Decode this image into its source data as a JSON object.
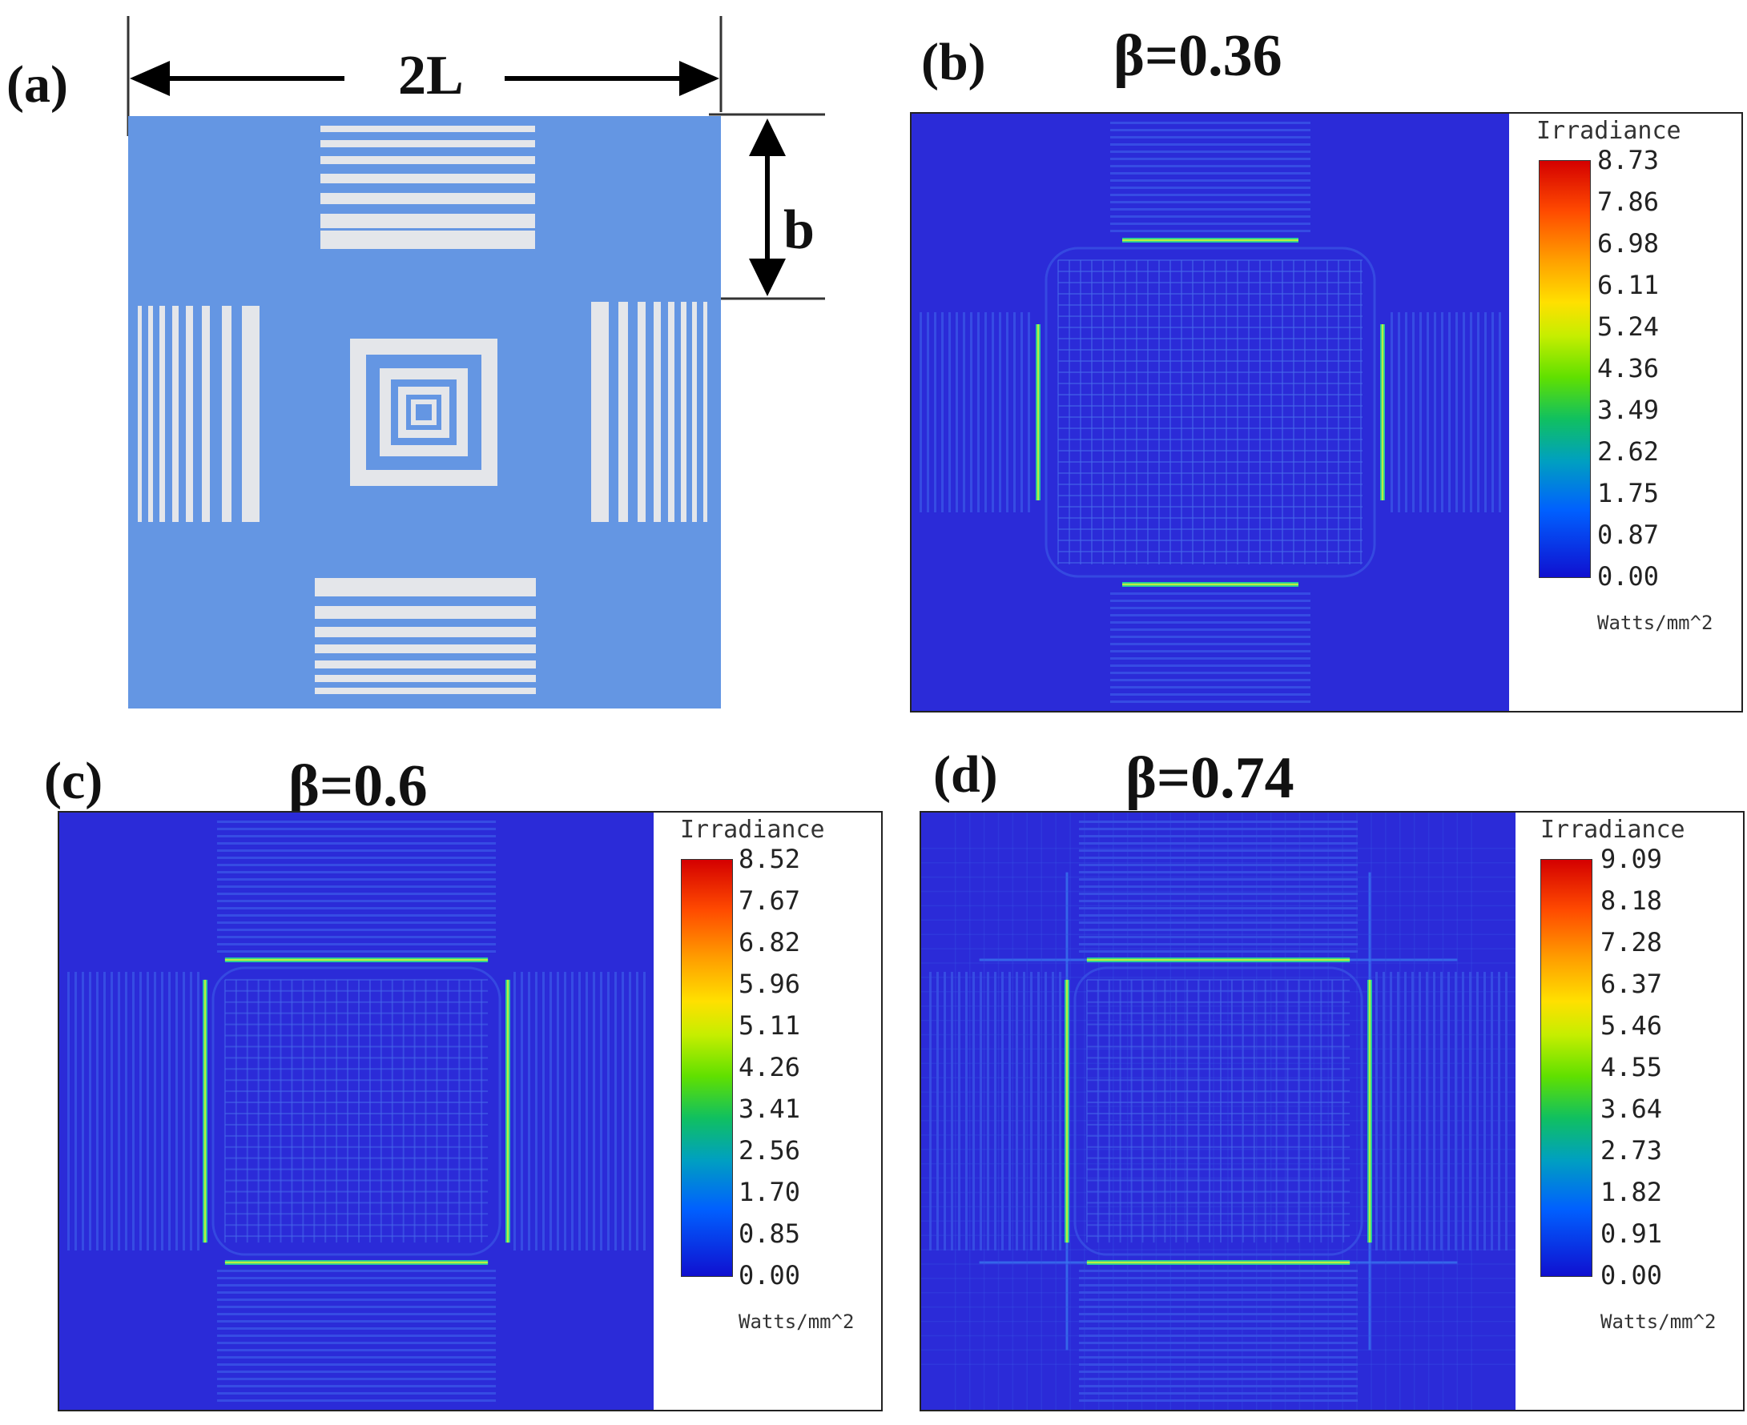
{
  "panel_a": {
    "label": "(a)",
    "width_label": "2L",
    "height_label": "b",
    "colors": {
      "mask": "#6496e3",
      "bars": "#e4e6ea"
    }
  },
  "panels": [
    {
      "id": "b",
      "label": "(b)",
      "beta_label": "β=0.36",
      "colorbar_title": "Irradiance",
      "ticks": [
        "8.73",
        "7.86",
        "6.98",
        "6.11",
        "5.24",
        "4.36",
        "3.49",
        "2.62",
        "1.75",
        "0.87",
        "0.00"
      ],
      "unit": "Watts/mm^2"
    },
    {
      "id": "c",
      "label": "(c)",
      "beta_label": "β=0.6",
      "colorbar_title": "Irradiance",
      "ticks": [
        "8.52",
        "7.67",
        "6.82",
        "5.96",
        "5.11",
        "4.26",
        "3.41",
        "2.56",
        "1.70",
        "0.85",
        "0.00"
      ],
      "unit": "Watts/mm^2"
    },
    {
      "id": "d",
      "label": "(d)",
      "beta_label": "β=0.74",
      "colorbar_title": "Irradiance",
      "ticks": [
        "9.09",
        "8.18",
        "7.28",
        "6.37",
        "5.46",
        "4.55",
        "3.64",
        "2.73",
        "1.82",
        "0.91",
        "0.00"
      ],
      "unit": "Watts/mm^2"
    }
  ]
}
